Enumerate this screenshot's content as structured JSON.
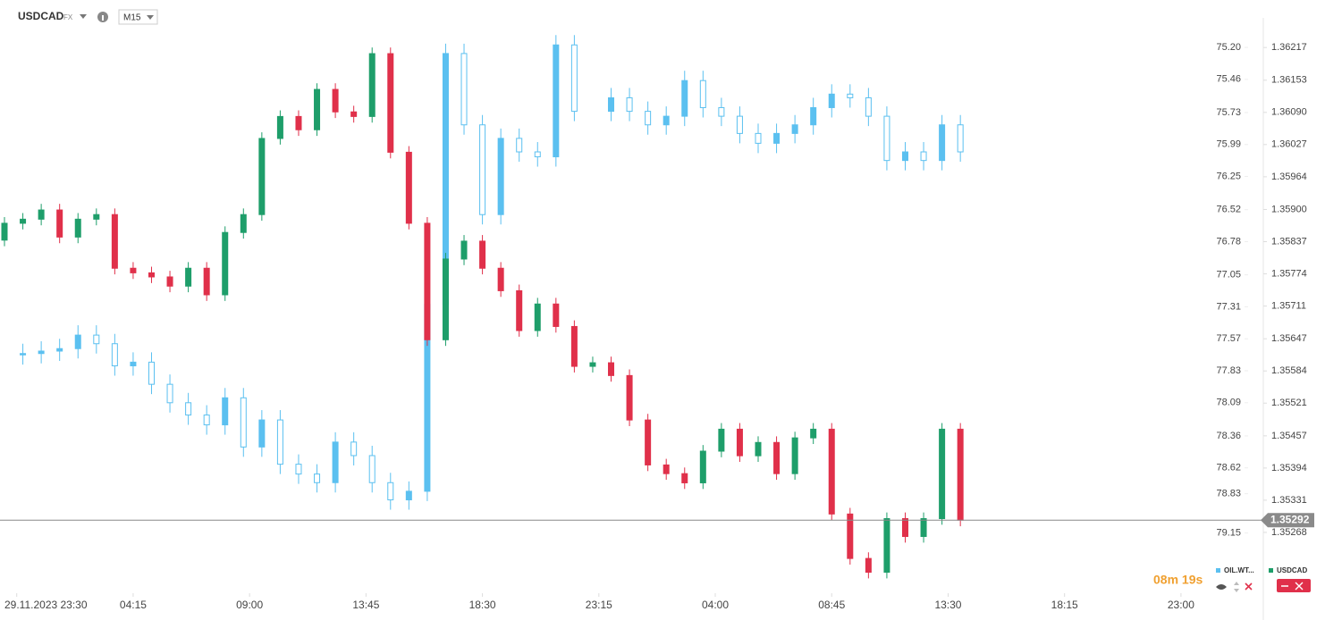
{
  "header": {
    "symbol": "USDCAD",
    "market": "FX",
    "timeframe": "M15"
  },
  "countdown": "08m 19s",
  "chart_data": {
    "type": "candlestick",
    "grid": false,
    "y2_inverted": true,
    "xlim": [
      0,
      205
    ],
    "xticks": [
      {
        "value": 2,
        "label": "29.11.2023 23:30"
      },
      {
        "value": 21,
        "label": "04:15"
      },
      {
        "value": 40,
        "label": "09:00"
      },
      {
        "value": 59,
        "label": "13:45"
      },
      {
        "value": 78,
        "label": "18:30"
      },
      {
        "value": 97,
        "label": "23:15"
      },
      {
        "value": 116,
        "label": "04:00"
      },
      {
        "value": 135,
        "label": "08:45"
      },
      {
        "value": 154,
        "label": "13:30"
      },
      {
        "value": 173,
        "label": "18:15"
      },
      {
        "value": 192,
        "label": "23:00"
      }
    ],
    "ylim": [
      1.35156,
      1.36275
    ],
    "yticks": [
      1.36217,
      1.36153,
      {
        "value": 1.3609,
        "label": "1.36090"
      },
      1.36027,
      1.35964,
      {
        "value": 1.359,
        "label": "1.35900"
      },
      1.35837,
      1.35774,
      1.35711,
      1.35647,
      1.35584,
      1.35521,
      1.35457,
      1.35394,
      1.35331,
      1.35268
    ],
    "y2lim": [
      74.96,
      79.61
    ],
    "y2ticks": [
      {
        "value": 75.2,
        "label": "75.20"
      },
      75.46,
      75.73,
      75.99,
      76.25,
      76.52,
      76.78,
      77.05,
      77.31,
      77.57,
      77.83,
      78.09,
      78.36,
      78.62,
      78.83,
      79.15
    ],
    "last_price": 1.35292,
    "series": [
      {
        "name": "OIL.WT...",
        "color": "#5bc0f0",
        "axis": "y2",
        "x": [
          3,
          6,
          9,
          12,
          15,
          18,
          21,
          24,
          27,
          30,
          33,
          36,
          39,
          42,
          45,
          48,
          51,
          54,
          57,
          60,
          63,
          66,
          69,
          72,
          75,
          78,
          81,
          84,
          87,
          90,
          93,
          96,
          99,
          102,
          105,
          108,
          111,
          114,
          117,
          120,
          123,
          126,
          129,
          132,
          135,
          138,
          141,
          144,
          147,
          150,
          153,
          156
        ],
        "open": [
          77.7,
          77.69,
          77.67,
          77.65,
          77.54,
          77.61,
          77.79,
          77.76,
          77.94,
          78.09,
          78.19,
          78.27,
          78.05,
          78.45,
          78.23,
          78.59,
          78.67,
          78.74,
          78.41,
          78.52,
          78.74,
          78.88,
          78.81,
          77.29,
          75.25,
          75.83,
          76.56,
          75.94,
          76.05,
          76.09,
          75.18,
          null,
          75.72,
          75.61,
          75.72,
          75.83,
          75.76,
          75.47,
          75.69,
          75.76,
          75.9,
          75.98,
          75.9,
          75.83,
          75.69,
          75.58,
          75.61,
          75.76,
          76.12,
          76.05,
          76.12,
          75.83
        ],
        "high": [
          77.78,
          77.77,
          77.75,
          77.73,
          77.69,
          77.87,
          77.87,
          78.02,
          78.17,
          78.27,
          78.35,
          78.35,
          78.53,
          78.53,
          78.67,
          78.75,
          78.82,
          78.82,
          78.6,
          78.82,
          78.96,
          78.96,
          78.89,
          77.37,
          75.91,
          76.64,
          76.64,
          76.13,
          76.17,
          76.17,
          75.8,
          null,
          75.8,
          75.8,
          75.91,
          75.91,
          75.84,
          75.77,
          75.84,
          75.98,
          76.06,
          76.06,
          75.98,
          75.91,
          75.77,
          75.69,
          75.84,
          76.2,
          76.2,
          76.2,
          76.2,
          76.13
        ],
        "low": [
          77.61,
          77.59,
          77.57,
          77.46,
          77.46,
          77.53,
          77.68,
          77.68,
          77.86,
          78.01,
          78.11,
          77.97,
          77.97,
          78.15,
          78.15,
          78.51,
          78.59,
          78.33,
          78.33,
          78.44,
          78.66,
          78.73,
          77.21,
          75.17,
          75.17,
          75.75,
          75.86,
          75.86,
          75.97,
          75.1,
          75.1,
          null,
          75.53,
          75.53,
          75.64,
          75.68,
          75.39,
          75.39,
          75.61,
          75.68,
          75.82,
          75.82,
          75.75,
          75.61,
          75.5,
          75.5,
          75.53,
          75.68,
          75.97,
          75.97,
          75.75,
          75.75
        ],
        "close": [
          77.69,
          77.67,
          77.65,
          77.54,
          77.61,
          77.79,
          77.76,
          77.94,
          78.09,
          78.19,
          78.27,
          78.05,
          78.45,
          78.23,
          78.59,
          78.67,
          78.74,
          78.41,
          78.52,
          78.74,
          78.88,
          78.81,
          77.29,
          75.25,
          75.83,
          76.56,
          75.94,
          76.05,
          76.09,
          75.18,
          75.72,
          null,
          75.61,
          75.72,
          75.83,
          75.76,
          75.47,
          75.69,
          75.76,
          75.9,
          75.98,
          75.9,
          75.83,
          75.69,
          75.58,
          75.61,
          75.76,
          76.12,
          76.05,
          76.12,
          75.83,
          76.05
        ]
      },
      {
        "name": "USDCAD",
        "color": "#1e9e6a",
        "down_color": "#e0304a",
        "axis": "y",
        "x": [
          0,
          3,
          6,
          9,
          12,
          15,
          18,
          21,
          24,
          27,
          30,
          33,
          36,
          39,
          42,
          45,
          48,
          51,
          54,
          57,
          60,
          63,
          66,
          69,
          72,
          75,
          78,
          81,
          84,
          87,
          90,
          93,
          96,
          99,
          102,
          105,
          108,
          111,
          114,
          117,
          120,
          123,
          126,
          129,
          132,
          135,
          138,
          141,
          144,
          147,
          150,
          153,
          156
        ],
        "open": [
          1.3584,
          1.35873,
          1.35881,
          1.35899,
          1.35846,
          1.35881,
          1.3589,
          1.35785,
          1.35776,
          1.35768,
          1.3575,
          1.35785,
          1.35733,
          1.35855,
          1.3589,
          1.36039,
          1.36082,
          1.36056,
          1.36135,
          1.36091,
          1.36082,
          1.36205,
          1.36012,
          1.35873,
          1.35645,
          1.35803,
          1.35838,
          1.35785,
          1.35741,
          1.35663,
          1.35715,
          1.35671,
          1.35593,
          1.356,
          1.35575,
          1.35488,
          1.354,
          1.35383,
          1.35365,
          1.35427,
          1.3547,
          1.35418,
          1.35444,
          1.35383,
          1.35453,
          1.3547,
          1.35304,
          1.35217,
          1.3519,
          1.35295,
          1.3526,
          1.35295,
          1.3547
        ],
        "high": [
          1.35885,
          1.35893,
          1.35911,
          1.35911,
          1.35893,
          1.35902,
          1.35902,
          1.35797,
          1.35788,
          1.3578,
          1.35797,
          1.35797,
          1.35867,
          1.35902,
          1.36051,
          1.36094,
          1.36094,
          1.36147,
          1.36147,
          1.36103,
          1.36217,
          1.36217,
          1.36024,
          1.35885,
          1.35815,
          1.3585,
          1.3585,
          1.35797,
          1.35753,
          1.35727,
          1.35727,
          1.35683,
          1.35612,
          1.35612,
          1.35587,
          1.355,
          1.35412,
          1.35395,
          1.35439,
          1.35482,
          1.35482,
          1.35456,
          1.35456,
          1.35465,
          1.35482,
          1.35482,
          1.35316,
          1.35229,
          1.35307,
          1.35307,
          1.35307,
          1.35482,
          1.35482
        ],
        "low": [
          1.35828,
          1.35861,
          1.35869,
          1.35834,
          1.35834,
          1.35869,
          1.35773,
          1.35764,
          1.35756,
          1.35738,
          1.35738,
          1.35721,
          1.35721,
          1.35843,
          1.35878,
          1.36027,
          1.36044,
          1.36044,
          1.36079,
          1.3607,
          1.3607,
          1.36,
          1.35861,
          1.35633,
          1.35633,
          1.35791,
          1.35773,
          1.35729,
          1.35651,
          1.35651,
          1.35659,
          1.35581,
          1.35581,
          1.35563,
          1.35476,
          1.35388,
          1.35371,
          1.35353,
          1.35353,
          1.35415,
          1.35406,
          1.35406,
          1.35371,
          1.35371,
          1.35441,
          1.35292,
          1.35205,
          1.35178,
          1.35178,
          1.35248,
          1.35248,
          1.35283,
          1.3528
        ],
        "close": [
          1.35873,
          1.35881,
          1.35899,
          1.35846,
          1.35881,
          1.3589,
          1.35785,
          1.35776,
          1.35768,
          1.3575,
          1.35785,
          1.35733,
          1.35855,
          1.3589,
          1.36039,
          1.36082,
          1.36056,
          1.36135,
          1.36091,
          1.36082,
          1.36205,
          1.36012,
          1.35873,
          1.35645,
          1.35803,
          1.35838,
          1.35785,
          1.35741,
          1.35663,
          1.35715,
          1.35671,
          1.35593,
          1.356,
          1.35575,
          1.35488,
          1.354,
          1.35383,
          1.35365,
          1.35427,
          1.3547,
          1.35418,
          1.35444,
          1.35383,
          1.35453,
          1.3547,
          1.35304,
          1.35217,
          1.3519,
          1.35295,
          1.3526,
          1.35295,
          1.3547,
          1.35292
        ]
      }
    ]
  }
}
